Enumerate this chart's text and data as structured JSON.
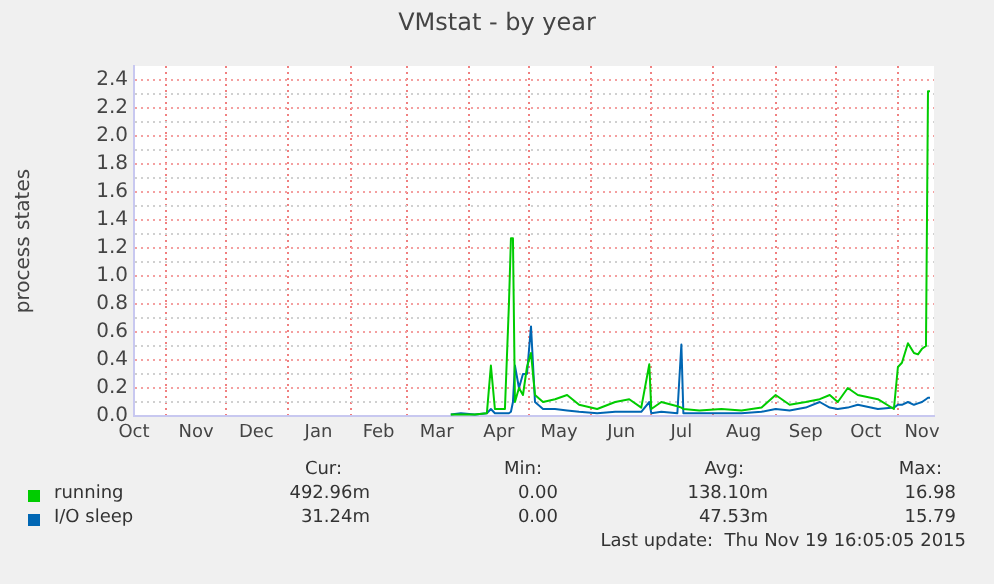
{
  "chart_data": {
    "type": "line",
    "title": "VMstat - by year",
    "ylabel": "process states",
    "xlim": [
      "2014-10-16",
      "2015-11-19"
    ],
    "xticks": [
      {
        "value": "2014-10-16",
        "label": "Oct"
      },
      {
        "value": "2014-11-01",
        "label": null
      },
      {
        "value": "2014-11-16",
        "label": "Nov"
      },
      {
        "value": "2014-12-01",
        "label": null
      },
      {
        "value": "2014-12-16",
        "label": "Dec"
      },
      {
        "value": "2015-01-01",
        "label": null
      },
      {
        "value": "2015-01-16",
        "label": "Jan"
      },
      {
        "value": "2015-02-01",
        "label": null
      },
      {
        "value": "2015-02-15",
        "label": "Feb"
      },
      {
        "value": "2015-03-01",
        "label": null
      },
      {
        "value": "2015-03-16",
        "label": "Mar"
      },
      {
        "value": "2015-04-01",
        "label": null
      },
      {
        "value": "2015-04-16",
        "label": "Apr"
      },
      {
        "value": "2015-05-01",
        "label": null
      },
      {
        "value": "2015-05-16",
        "label": "May"
      },
      {
        "value": "2015-06-01",
        "label": null
      },
      {
        "value": "2015-06-16",
        "label": "Jun"
      },
      {
        "value": "2015-07-01",
        "label": null
      },
      {
        "value": "2015-07-16",
        "label": "Jul"
      },
      {
        "value": "2015-08-01",
        "label": null
      },
      {
        "value": "2015-08-16",
        "label": "Aug"
      },
      {
        "value": "2015-09-01",
        "label": null
      },
      {
        "value": "2015-09-16",
        "label": "Sep"
      },
      {
        "value": "2015-10-01",
        "label": null
      },
      {
        "value": "2015-10-16",
        "label": "Oct"
      },
      {
        "value": "2015-11-01",
        "label": null
      },
      {
        "value": "2015-11-13",
        "label": "Nov"
      }
    ],
    "ylim": [
      0,
      2.5
    ],
    "yticks": [
      {
        "value": 0,
        "label": "0.0"
      },
      {
        "value": 0.1,
        "label": null
      },
      {
        "value": 0.2,
        "label": "0.2"
      },
      {
        "value": 0.3,
        "label": null
      },
      {
        "value": 0.4,
        "label": "0.4"
      },
      {
        "value": 0.5,
        "label": null
      },
      {
        "value": 0.6,
        "label": "0.6"
      },
      {
        "value": 0.7,
        "label": null
      },
      {
        "value": 0.8,
        "label": "0.8"
      },
      {
        "value": 0.9,
        "label": null
      },
      {
        "value": 1,
        "label": "1.0"
      },
      {
        "value": 1.1,
        "label": null
      },
      {
        "value": 1.2,
        "label": "1.2"
      },
      {
        "value": 1.3,
        "label": null
      },
      {
        "value": 1.4,
        "label": "1.4"
      },
      {
        "value": 1.5,
        "label": null
      },
      {
        "value": 1.6,
        "label": "1.6"
      },
      {
        "value": 1.7,
        "label": null
      },
      {
        "value": 1.8,
        "label": "1.8"
      },
      {
        "value": 1.9,
        "label": null
      },
      {
        "value": 2,
        "label": "2.0"
      },
      {
        "value": 2.1,
        "label": null
      },
      {
        "value": 2.2,
        "label": "2.2"
      },
      {
        "value": 2.3,
        "label": null
      },
      {
        "value": 2.4,
        "label": "2.4"
      }
    ],
    "grid": true,
    "legend": "bottom",
    "marker": "none",
    "x": [
      "2015-03-23",
      "2015-03-28",
      "2015-04-04",
      "2015-04-10",
      "2015-04-12",
      "2015-04-14",
      "2015-04-19",
      "2015-04-21",
      "2015-04-22",
      "2015-04-23",
      "2015-04-24",
      "2015-04-26",
      "2015-04-28",
      "2015-04-30",
      "2015-05-02",
      "2015-05-04",
      "2015-05-08",
      "2015-05-14",
      "2015-05-20",
      "2015-05-26",
      "2015-06-04",
      "2015-06-13",
      "2015-06-20",
      "2015-06-26",
      "2015-06-30",
      "2015-07-01",
      "2015-07-06",
      "2015-07-14",
      "2015-07-16",
      "2015-07-17",
      "2015-07-25",
      "2015-08-05",
      "2015-08-15",
      "2015-08-25",
      "2015-09-01",
      "2015-09-08",
      "2015-09-16",
      "2015-09-23",
      "2015-09-28",
      "2015-10-02",
      "2015-10-07",
      "2015-10-12",
      "2015-10-22",
      "2015-10-30",
      "2015-11-01",
      "2015-11-03",
      "2015-11-06",
      "2015-11-09",
      "2015-11-11",
      "2015-11-13",
      "2015-11-15",
      "2015-11-16",
      "2015-11-17"
    ],
    "series": [
      {
        "name": "running",
        "color": "#00cc00",
        "values": [
          0.01,
          0.01,
          0.01,
          0.02,
          0.36,
          0.05,
          0.05,
          0.8,
          1.27,
          1.27,
          0.1,
          0.2,
          0.15,
          0.35,
          0.45,
          0.15,
          0.1,
          0.12,
          0.15,
          0.08,
          0.05,
          0.1,
          0.12,
          0.06,
          0.37,
          0.05,
          0.1,
          0.07,
          0.06,
          0.05,
          0.04,
          0.05,
          0.04,
          0.06,
          0.15,
          0.08,
          0.1,
          0.12,
          0.15,
          0.1,
          0.2,
          0.15,
          0.12,
          0.05,
          0.35,
          0.38,
          0.52,
          0.45,
          0.44,
          0.48,
          0.5,
          2.32,
          2.32
        ]
      },
      {
        "name": "I/O sleep",
        "color": "#0066b3",
        "values": [
          0.01,
          0.02,
          0.01,
          0.02,
          0.05,
          0.02,
          0.02,
          0.02,
          0.03,
          0.1,
          0.36,
          0.2,
          0.3,
          0.3,
          0.64,
          0.1,
          0.05,
          0.05,
          0.04,
          0.03,
          0.02,
          0.03,
          0.03,
          0.03,
          0.1,
          0.02,
          0.03,
          0.02,
          0.51,
          0.02,
          0.02,
          0.02,
          0.02,
          0.03,
          0.05,
          0.04,
          0.06,
          0.1,
          0.06,
          0.05,
          0.06,
          0.08,
          0.05,
          0.06,
          0.08,
          0.08,
          0.1,
          0.08,
          0.09,
          0.1,
          0.12,
          0.13,
          0.13
        ]
      }
    ],
    "annotations": [
      "Cur:",
      "Min:",
      "Avg:",
      "Max:",
      "492.96m",
      "0.00",
      "138.10m",
      "16.98",
      "31.24m",
      "0.00",
      "47.53m",
      "15.79",
      "Last update:  Thu Nov 19 16:05:05 2015"
    ]
  }
}
